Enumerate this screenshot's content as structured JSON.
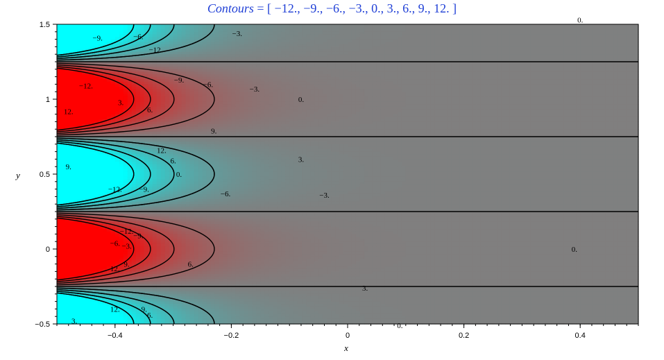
{
  "chart_data": {
    "type": "contour",
    "title_prefix": "Contours",
    "title_values": "[ −12.,  −9.,  −6.,  −3.,  0.,  3.,  6.,  9.,  12. ]",
    "xlabel": "x",
    "ylabel": "y",
    "xlim": [
      -0.5,
      0.5
    ],
    "ylim": [
      -0.5,
      1.5
    ],
    "xticks": [
      -0.4,
      -0.2,
      0,
      0.2,
      0.4
    ],
    "xtick_labels": [
      "−0.4",
      "−0.2",
      "0",
      "0.2",
      "0.4"
    ],
    "yticks": [
      -0.5,
      0,
      0.5,
      1,
      1.5
    ],
    "ytick_labels": [
      "−0.5",
      "0",
      "0.5",
      "1",
      "1.5"
    ],
    "contour_levels": [
      -12,
      -9,
      -6,
      -3,
      0,
      3,
      6,
      9,
      12
    ],
    "contour_labels": [
      {
        "text": "−3.",
        "x": -0.19,
        "y": 1.44
      },
      {
        "text": "−6.",
        "x": -0.36,
        "y": 1.42
      },
      {
        "text": "−9.",
        "x": -0.43,
        "y": 1.41
      },
      {
        "text": "−12.",
        "x": -0.33,
        "y": 1.33
      },
      {
        "text": "0.",
        "x": 0.4,
        "y": 1.53
      },
      {
        "text": "−12.",
        "x": -0.45,
        "y": 1.09
      },
      {
        "text": "−9.",
        "x": -0.29,
        "y": 1.13
      },
      {
        "text": "−6.",
        "x": -0.24,
        "y": 1.1
      },
      {
        "text": "−3.",
        "x": -0.16,
        "y": 1.07
      },
      {
        "text": "0.",
        "x": -0.08,
        "y": 1.0
      },
      {
        "text": "3.",
        "x": -0.39,
        "y": 0.98
      },
      {
        "text": "6.",
        "x": -0.34,
        "y": 0.93
      },
      {
        "text": "12.",
        "x": -0.48,
        "y": 0.92
      },
      {
        "text": "9.",
        "x": -0.23,
        "y": 0.79
      },
      {
        "text": "12.",
        "x": -0.32,
        "y": 0.66
      },
      {
        "text": "6.",
        "x": -0.3,
        "y": 0.59
      },
      {
        "text": "3.",
        "x": -0.08,
        "y": 0.6
      },
      {
        "text": "9.",
        "x": -0.48,
        "y": 0.55
      },
      {
        "text": "0.",
        "x": -0.29,
        "y": 0.5
      },
      {
        "text": "−12.",
        "x": -0.4,
        "y": 0.4
      },
      {
        "text": "−9.",
        "x": -0.35,
        "y": 0.4
      },
      {
        "text": "−6.",
        "x": -0.21,
        "y": 0.37
      },
      {
        "text": "−3.",
        "x": -0.04,
        "y": 0.36
      },
      {
        "text": "−12.",
        "x": -0.38,
        "y": 0.12
      },
      {
        "text": "−9.",
        "x": -0.36,
        "y": 0.09
      },
      {
        "text": "−6.",
        "x": -0.4,
        "y": 0.04
      },
      {
        "text": "−3.",
        "x": -0.38,
        "y": 0.02
      },
      {
        "text": "0.",
        "x": 0.39,
        "y": 0.0
      },
      {
        "text": "9.",
        "x": -0.38,
        "y": -0.1
      },
      {
        "text": "12.",
        "x": -0.4,
        "y": -0.13
      },
      {
        "text": "6.",
        "x": -0.27,
        "y": -0.1
      },
      {
        "text": "3.",
        "x": 0.03,
        "y": -0.26
      },
      {
        "text": "12.",
        "x": -0.4,
        "y": -0.4
      },
      {
        "text": "9.",
        "x": -0.35,
        "y": -0.4
      },
      {
        "text": "6.",
        "x": -0.34,
        "y": -0.44
      },
      {
        "text": "3.",
        "x": -0.47,
        "y": -0.48
      },
      {
        "text": "0.",
        "x": 0.09,
        "y": -0.51
      }
    ]
  }
}
